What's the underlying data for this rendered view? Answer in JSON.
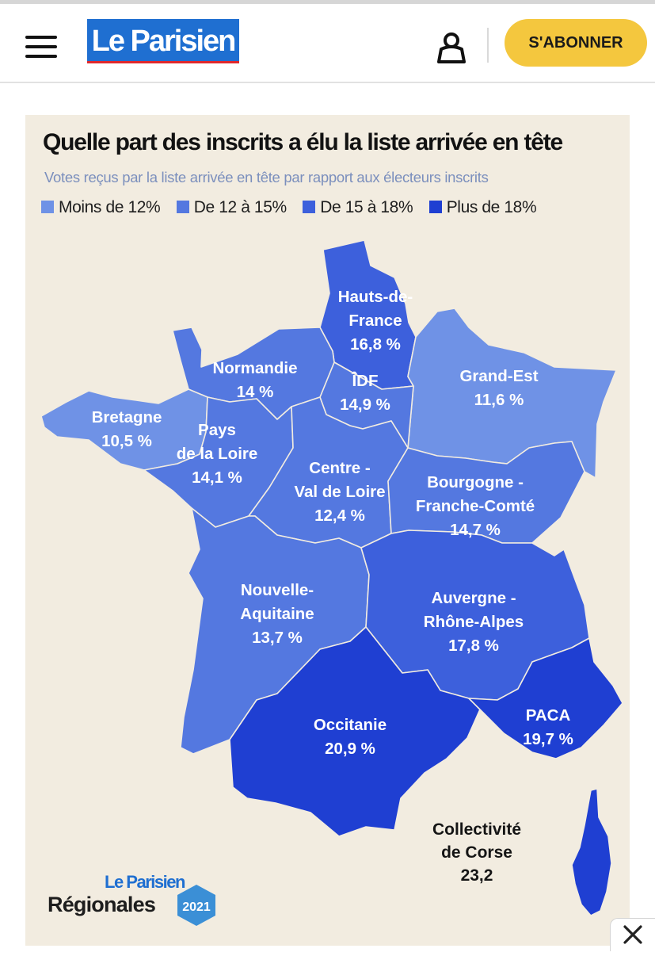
{
  "header": {
    "logo_text": "Le Parisien",
    "subscribe_label": "S'ABONNER"
  },
  "infographic": {
    "title": "Quelle part des inscrits a élu la liste arrivée en tête",
    "subtitle": "Votes reçus par la liste arrivée en tête par rapport aux électeurs inscrits",
    "legend": [
      {
        "label": "Moins de 12%",
        "color": "#6f92e6"
      },
      {
        "label": "De 12 à 15%",
        "color": "#5478e0"
      },
      {
        "label": "De 15 à 18%",
        "color": "#3d60dc"
      },
      {
        "label": "Plus de 18%",
        "color": "#1f3fd2"
      }
    ],
    "regions": [
      {
        "id": "hauts-de-france",
        "lines": [
          "Hauts-de-",
          "France",
          "16,8 %"
        ],
        "value": 16.8
      },
      {
        "id": "normandie",
        "lines": [
          "Normandie",
          "14 %"
        ],
        "value": 14.0
      },
      {
        "id": "idf",
        "lines": [
          "ÎDF",
          "14,9 %"
        ],
        "value": 14.9
      },
      {
        "id": "grand-est",
        "lines": [
          "Grand-Est",
          "11,6 %"
        ],
        "value": 11.6
      },
      {
        "id": "bretagne",
        "lines": [
          "Bretagne",
          "10,5 %"
        ],
        "value": 10.5
      },
      {
        "id": "pays-de-la-loire",
        "lines": [
          "Pays",
          "de la Loire",
          "14,1 %"
        ],
        "value": 14.1
      },
      {
        "id": "centre-val-de-loire",
        "lines": [
          "Centre -",
          "Val de Loire",
          "12,4 %"
        ],
        "value": 12.4
      },
      {
        "id": "bourgogne-franche-comte",
        "lines": [
          "Bourgogne -",
          "Franche-Comté",
          "14,7 %"
        ],
        "value": 14.7
      },
      {
        "id": "nouvelle-aquitaine",
        "lines": [
          "Nouvelle-",
          "Aquitaine",
          "13,7 %"
        ],
        "value": 13.7
      },
      {
        "id": "auvergne-rhone-alpes",
        "lines": [
          "Auvergne -",
          "Rhône-Alpes",
          "17,8 %"
        ],
        "value": 17.8
      },
      {
        "id": "occitanie",
        "lines": [
          "Occitanie",
          "20,9 %"
        ],
        "value": 20.9
      },
      {
        "id": "paca",
        "lines": [
          "PACA",
          "19,7 %"
        ],
        "value": 19.7
      },
      {
        "id": "corse",
        "lines": [
          "Collectivité",
          "de Corse",
          "23,2"
        ],
        "value": 23.2
      }
    ],
    "brand": {
      "small": "Le Parisien",
      "big": "Régionales",
      "year": "2021"
    }
  }
}
